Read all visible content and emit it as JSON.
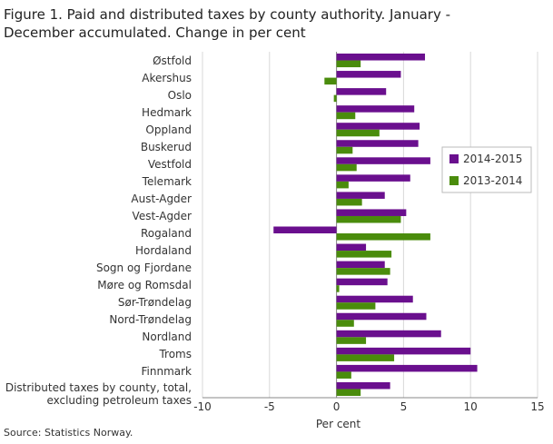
{
  "chart_data": {
    "type": "hbar",
    "title": "Figure 1. Paid and distributed taxes by county authority. January - December accumulated. Change in per cent",
    "categories": [
      "Østfold",
      "Akershus",
      "Oslo",
      "Hedmark",
      "Oppland",
      "Buskerud",
      "Vestfold",
      "Telemark",
      "Aust-Agder",
      "Vest-Agder",
      "Rogaland",
      "Hordaland",
      "Sogn og Fjordane",
      "Møre og Romsdal",
      "Sør-Trøndelag",
      "Nord-Trøndelag",
      "Nordland",
      "Troms",
      "Finnmark",
      "Distributed taxes by county, total, excluding petroleum taxes"
    ],
    "series": [
      {
        "name": "2014-2015",
        "color": "#6a0f8e",
        "values": [
          6.6,
          4.8,
          3.7,
          5.8,
          6.2,
          6.1,
          7.0,
          5.5,
          3.6,
          5.2,
          -4.7,
          2.2,
          3.6,
          3.8,
          5.7,
          6.7,
          7.8,
          10.0,
          10.5,
          4.0
        ]
      },
      {
        "name": "2013-2014",
        "color": "#4a8c0c",
        "values": [
          1.8,
          -0.9,
          -0.2,
          1.4,
          3.2,
          1.2,
          1.5,
          0.9,
          1.9,
          4.8,
          7.0,
          4.1,
          4.0,
          0.2,
          2.9,
          1.3,
          2.2,
          4.3,
          1.1,
          1.8
        ]
      }
    ],
    "xlim": [
      -10,
      15
    ],
    "xticks": [
      -10,
      -5,
      0,
      5,
      10,
      15
    ],
    "xlabel": "Per cent",
    "grid": true,
    "legend": "right",
    "source": "Source: Statistics Norway."
  }
}
